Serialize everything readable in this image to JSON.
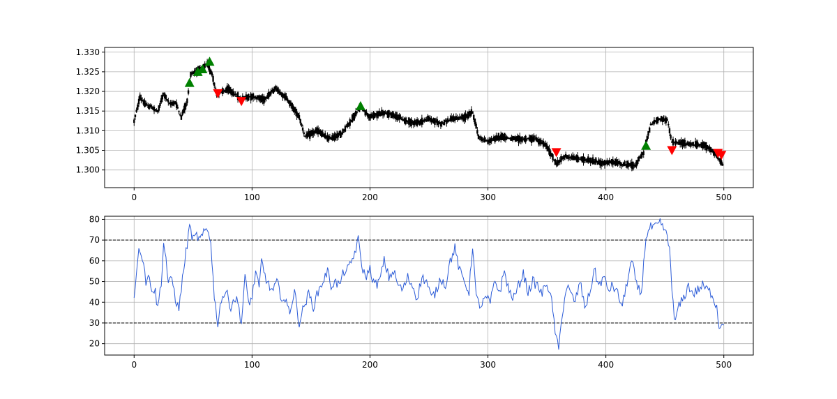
{
  "chart_data": [
    {
      "type": "candlestick",
      "title": "",
      "xlabel": "",
      "ylabel": "",
      "xlim": [
        -25,
        525
      ],
      "ylim": [
        1.2955,
        1.3312
      ],
      "xticks": [
        0,
        100,
        200,
        300,
        400,
        500
      ],
      "xtick_labels": [
        "0",
        "100",
        "200",
        "300",
        "400",
        "500"
      ],
      "yticks": [
        1.3,
        1.305,
        1.31,
        1.315,
        1.32,
        1.325,
        1.33
      ],
      "ytick_labels": [
        "1.300",
        "1.305",
        "1.310",
        "1.315",
        "1.320",
        "1.325",
        "1.330"
      ],
      "grid": true,
      "candle_color": "#000000",
      "price_anchors": [
        [
          0,
          1.3125
        ],
        [
          5,
          1.3185
        ],
        [
          10,
          1.3165
        ],
        [
          15,
          1.316
        ],
        [
          20,
          1.3148
        ],
        [
          25,
          1.3195
        ],
        [
          30,
          1.3168
        ],
        [
          35,
          1.3172
        ],
        [
          40,
          1.3135
        ],
        [
          45,
          1.3175
        ],
        [
          48,
          1.3245
        ],
        [
          55,
          1.3255
        ],
        [
          62,
          1.3268
        ],
        [
          66,
          1.3245
        ],
        [
          70,
          1.3195
        ],
        [
          80,
          1.3205
        ],
        [
          90,
          1.3182
        ],
        [
          100,
          1.3188
        ],
        [
          110,
          1.318
        ],
        [
          120,
          1.3208
        ],
        [
          130,
          1.318
        ],
        [
          140,
          1.3135
        ],
        [
          145,
          1.3085
        ],
        [
          155,
          1.31
        ],
        [
          165,
          1.308
        ],
        [
          175,
          1.309
        ],
        [
          185,
          1.313
        ],
        [
          192,
          1.316
        ],
        [
          200,
          1.3135
        ],
        [
          210,
          1.3145
        ],
        [
          220,
          1.314
        ],
        [
          230,
          1.3125
        ],
        [
          240,
          1.312
        ],
        [
          250,
          1.313
        ],
        [
          260,
          1.3118
        ],
        [
          270,
          1.313
        ],
        [
          280,
          1.3135
        ],
        [
          287,
          1.3148
        ],
        [
          292,
          1.3085
        ],
        [
          300,
          1.3072
        ],
        [
          310,
          1.3085
        ],
        [
          320,
          1.308
        ],
        [
          330,
          1.3078
        ],
        [
          340,
          1.308
        ],
        [
          350,
          1.306
        ],
        [
          358,
          1.3015
        ],
        [
          365,
          1.3035
        ],
        [
          375,
          1.303
        ],
        [
          385,
          1.3025
        ],
        [
          395,
          1.3018
        ],
        [
          405,
          1.302
        ],
        [
          415,
          1.3015
        ],
        [
          425,
          1.3012
        ],
        [
          432,
          1.3045
        ],
        [
          438,
          1.3115
        ],
        [
          445,
          1.313
        ],
        [
          452,
          1.3128
        ],
        [
          456,
          1.307
        ],
        [
          465,
          1.3068
        ],
        [
          475,
          1.3065
        ],
        [
          485,
          1.3062
        ],
        [
          492,
          1.3042
        ],
        [
          499,
          1.3015
        ]
      ],
      "buy_signals": [
        {
          "x": 47,
          "y": 1.3222
        },
        {
          "x": 54,
          "y": 1.325
        },
        {
          "x": 58,
          "y": 1.3257
        },
        {
          "x": 64,
          "y": 1.3276
        },
        {
          "x": 192,
          "y": 1.3163
        },
        {
          "x": 434,
          "y": 1.3062
        }
      ],
      "sell_signals": [
        {
          "x": 71,
          "y": 1.3195
        },
        {
          "x": 91,
          "y": 1.3175
        },
        {
          "x": 358,
          "y": 1.3045
        },
        {
          "x": 456,
          "y": 1.305
        },
        {
          "x": 495,
          "y": 1.3043
        },
        {
          "x": 498,
          "y": 1.3038
        }
      ],
      "buy_color": "#008000",
      "sell_color": "#ff0000"
    },
    {
      "type": "line",
      "title": "",
      "xlabel": "",
      "ylabel": "",
      "xlim": [
        -25,
        525
      ],
      "ylim": [
        14.5,
        81.5
      ],
      "xticks": [
        0,
        100,
        200,
        300,
        400,
        500
      ],
      "xtick_labels": [
        "0",
        "100",
        "200",
        "300",
        "400",
        "500"
      ],
      "yticks": [
        20,
        30,
        40,
        50,
        60,
        70,
        80
      ],
      "ytick_labels": [
        "20",
        "30",
        "40",
        "50",
        "60",
        "70",
        "80"
      ],
      "grid": true,
      "series_color": "#2b5bd7",
      "thresholds": [
        70,
        30
      ],
      "threshold_color": "#000000",
      "series": [
        {
          "name": "",
          "anchors": [
            [
              0,
              42
            ],
            [
              3,
              62
            ],
            [
              5,
              66
            ],
            [
              8,
              60
            ],
            [
              10,
              50
            ],
            [
              13,
              52
            ],
            [
              15,
              47
            ],
            [
              18,
              45
            ],
            [
              20,
              37
            ],
            [
              23,
              50
            ],
            [
              25,
              68
            ],
            [
              27,
              62
            ],
            [
              29,
              48
            ],
            [
              32,
              52
            ],
            [
              35,
              42
            ],
            [
              38,
              36
            ],
            [
              40,
              47
            ],
            [
              43,
              60
            ],
            [
              46,
              72
            ],
            [
              47,
              77
            ],
            [
              50,
              70
            ],
            [
              53,
              72
            ],
            [
              56,
              70
            ],
            [
              60,
              74
            ],
            [
              62,
              75
            ],
            [
              65,
              70
            ],
            [
              68,
              42
            ],
            [
              71,
              30
            ],
            [
              74,
              42
            ],
            [
              78,
              45
            ],
            [
              82,
              38
            ],
            [
              85,
              42
            ],
            [
              88,
              40
            ],
            [
              91,
              30
            ],
            [
              94,
              52
            ],
            [
              97,
              40
            ],
            [
              100,
              42
            ],
            [
              103,
              55
            ],
            [
              106,
              46
            ],
            [
              108,
              60
            ],
            [
              111,
              53
            ],
            [
              114,
              48
            ],
            [
              118,
              45
            ],
            [
              121,
              50
            ],
            [
              124,
              44
            ],
            [
              128,
              40
            ],
            [
              132,
              36
            ],
            [
              136,
              45
            ],
            [
              140,
              30
            ],
            [
              144,
              38
            ],
            [
              148,
              44
            ],
            [
              152,
              38
            ],
            [
              156,
              45
            ],
            [
              160,
              50
            ],
            [
              164,
              55
            ],
            [
              167,
              48
            ],
            [
              170,
              50
            ],
            [
              174,
              48
            ],
            [
              178,
              55
            ],
            [
              182,
              56
            ],
            [
              186,
              62
            ],
            [
              190,
              70
            ],
            [
              193,
              58
            ],
            [
              196,
              52
            ],
            [
              200,
              56
            ],
            [
              204,
              48
            ],
            [
              208,
              50
            ],
            [
              212,
              60
            ],
            [
              216,
              52
            ],
            [
              220,
              55
            ],
            [
              224,
              48
            ],
            [
              228,
              46
            ],
            [
              232,
              52
            ],
            [
              236,
              48
            ],
            [
              240,
              42
            ],
            [
              244,
              52
            ],
            [
              248,
              50
            ],
            [
              252,
              42
            ],
            [
              256,
              45
            ],
            [
              260,
              52
            ],
            [
              264,
              48
            ],
            [
              268,
              60
            ],
            [
              272,
              66
            ],
            [
              276,
              55
            ],
            [
              280,
              50
            ],
            [
              284,
              45
            ],
            [
              287,
              68
            ],
            [
              290,
              42
            ],
            [
              294,
              38
            ],
            [
              298,
              42
            ],
            [
              302,
              40
            ],
            [
              306,
              50
            ],
            [
              310,
              45
            ],
            [
              314,
              55
            ],
            [
              318,
              45
            ],
            [
              322,
              42
            ],
            [
              326,
              48
            ],
            [
              330,
              54
            ],
            [
              334,
              45
            ],
            [
              338,
              50
            ],
            [
              342,
              48
            ],
            [
              346,
              44
            ],
            [
              350,
              50
            ],
            [
              354,
              40
            ],
            [
              358,
              22
            ],
            [
              360,
              17
            ],
            [
              363,
              35
            ],
            [
              367,
              48
            ],
            [
              370,
              44
            ],
            [
              374,
              40
            ],
            [
              378,
              50
            ],
            [
              382,
              38
            ],
            [
              386,
              43
            ],
            [
              390,
              56
            ],
            [
              394,
              48
            ],
            [
              398,
              52
            ],
            [
              402,
              46
            ],
            [
              406,
              48
            ],
            [
              410,
              44
            ],
            [
              414,
              38
            ],
            [
              418,
              50
            ],
            [
              422,
              60
            ],
            [
              426,
              48
            ],
            [
              430,
              44
            ],
            [
              434,
              72
            ],
            [
              438,
              76
            ],
            [
              442,
              76
            ],
            [
              446,
              78
            ],
            [
              450,
              75
            ],
            [
              454,
              66
            ],
            [
              458,
              30
            ],
            [
              462,
              38
            ],
            [
              466,
              42
            ],
            [
              470,
              48
            ],
            [
              474,
              44
            ],
            [
              478,
              46
            ],
            [
              482,
              48
            ],
            [
              486,
              46
            ],
            [
              490,
              44
            ],
            [
              494,
              38
            ],
            [
              496,
              28
            ],
            [
              498,
              30
            ],
            [
              500,
              31
            ]
          ]
        }
      ]
    }
  ]
}
